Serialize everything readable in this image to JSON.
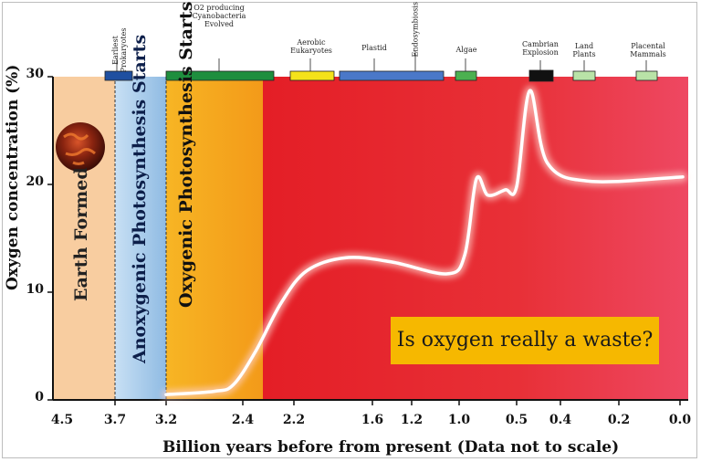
{
  "chart_data": {
    "type": "line",
    "title": "",
    "xlabel": "Billion years before from present (Data not to scale)",
    "ylabel": "Oxygen concentration (%)",
    "ylim": [
      0,
      30
    ],
    "yticks": [
      "0",
      "10",
      "20",
      "30"
    ],
    "xticks": [
      "4.5",
      "3.7",
      "3.2",
      "2.4",
      "2.2",
      "1.6",
      "1.2",
      "1.0",
      "0.5",
      "0.4",
      "0.2",
      "0.0"
    ],
    "series": [
      {
        "name": "Oxygen concentration",
        "points": [
          {
            "x": 3.2,
            "y": 0.5
          },
          {
            "x": 2.7,
            "y": 0.8
          },
          {
            "x": 2.5,
            "y": 1.4
          },
          {
            "x": 2.35,
            "y": 4.5
          },
          {
            "x": 2.25,
            "y": 9.0
          },
          {
            "x": 2.1,
            "y": 12.0
          },
          {
            "x": 1.8,
            "y": 13.2
          },
          {
            "x": 1.4,
            "y": 12.8
          },
          {
            "x": 1.05,
            "y": 11.7
          },
          {
            "x": 0.95,
            "y": 13.5
          },
          {
            "x": 0.85,
            "y": 20.5
          },
          {
            "x": 0.75,
            "y": 19.0
          },
          {
            "x": 0.6,
            "y": 19.5
          },
          {
            "x": 0.5,
            "y": 19.8
          },
          {
            "x": 0.47,
            "y": 28.7
          },
          {
            "x": 0.43,
            "y": 22.0
          },
          {
            "x": 0.3,
            "y": 20.3
          },
          {
            "x": 0.0,
            "y": 20.7
          }
        ]
      }
    ],
    "regions": [
      {
        "label": "Earth Formed",
        "from": 4.5,
        "to": 3.7
      },
      {
        "label": "Anoxygenic Photosynthesis Starts",
        "from": 3.7,
        "to": 3.2
      },
      {
        "label": "Oxygenic Photosynthesis Starts",
        "from": 3.2,
        "to": 2.3
      }
    ],
    "events": [
      {
        "label": "Earliest\nProkaryotes",
        "color": "#1f4fa0"
      },
      {
        "label": "O2 producing\nCyanobacteria\nEvolved",
        "color": "#1e8e3e"
      },
      {
        "label": "Aerobic\nEukaryotes",
        "color": "#f4e21a"
      },
      {
        "label": "Plastid",
        "color": "#4a78c8"
      },
      {
        "label": "Endosymbiosis",
        "color": "#4a78c8"
      },
      {
        "label": "Algae",
        "color": "#4cb050"
      },
      {
        "label": "Cambrian\nExplosion",
        "color": "#111111"
      },
      {
        "label": "Land\nPlants",
        "color": "#b9e3a7"
      },
      {
        "label": "Placental\nMammals",
        "color": "#b9e3a7"
      }
    ],
    "annotations": [
      "Is oxygen really a waste?"
    ]
  },
  "colors": {
    "earth_region": "#f8cda0",
    "anoxygenic_region": "#a9cdec",
    "oxygenic_region": "#f5a61f",
    "red_region": "#e8232a",
    "pink_end": "#ee4660",
    "curve": "#ffffff",
    "callout_bg": "#f6b800"
  }
}
